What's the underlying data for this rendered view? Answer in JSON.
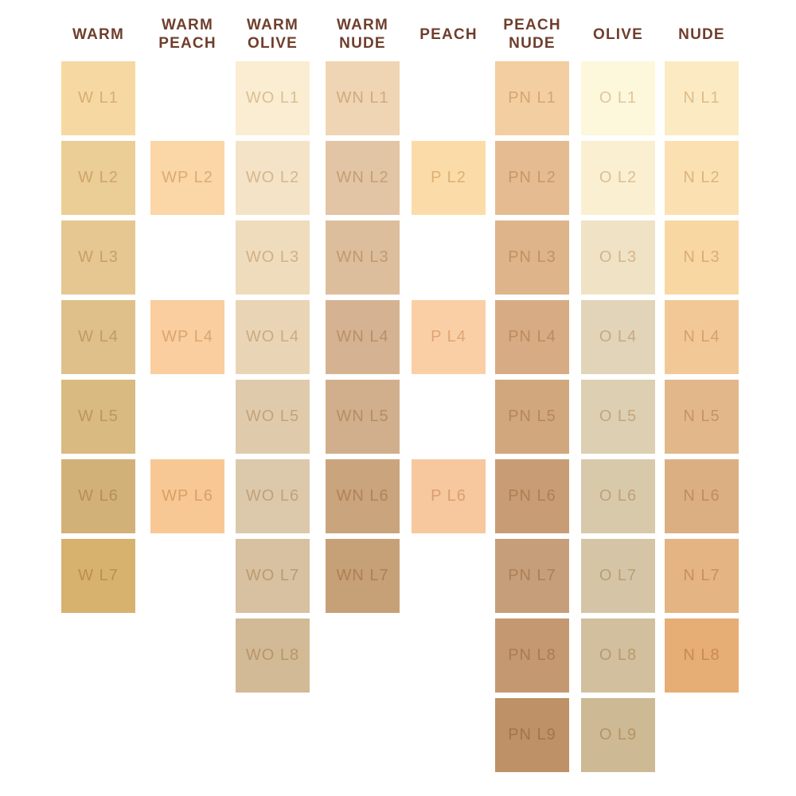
{
  "palette": {
    "background": "#FFFFFF",
    "header_text": "#6F3E2C"
  },
  "chart_data": {
    "type": "table",
    "description": "Foundation shade chart: 8 undertone families by lightness level L1-L9",
    "columns": [
      {
        "header": "WARM",
        "swatches": [
          {
            "label": "W L1",
            "row": 1,
            "color": "#F6D9A2"
          },
          {
            "label": "W L2",
            "row": 2,
            "color": "#EBCD96"
          },
          {
            "label": "W L3",
            "row": 3,
            "color": "#E6C791"
          },
          {
            "label": "W L4",
            "row": 4,
            "color": "#DFC08B"
          },
          {
            "label": "W L5",
            "row": 5,
            "color": "#D9BA81"
          },
          {
            "label": "W L6",
            "row": 6,
            "color": "#D2B179"
          },
          {
            "label": "W L7",
            "row": 7,
            "color": "#D7B26F"
          }
        ]
      },
      {
        "header": "WARM PEACH",
        "swatches": [
          {
            "label": "WP L2",
            "row": 2,
            "color": "#FBD6A6"
          },
          {
            "label": "WP L4",
            "row": 4,
            "color": "#FACE9E"
          },
          {
            "label": "WP L6",
            "row": 6,
            "color": "#F7C893"
          }
        ]
      },
      {
        "header": "WARM OLIVE",
        "swatches": [
          {
            "label": "WO L1",
            "row": 1,
            "color": "#FAEDD1"
          },
          {
            "label": "WO L2",
            "row": 2,
            "color": "#F4E3C6"
          },
          {
            "label": "WO L3",
            "row": 3,
            "color": "#EFDCBD"
          },
          {
            "label": "WO L4",
            "row": 4,
            "color": "#E9D5B6"
          },
          {
            "label": "WO L5",
            "row": 5,
            "color": "#DFCBAC"
          },
          {
            "label": "WO L6",
            "row": 6,
            "color": "#DCC9AB"
          },
          {
            "label": "WO L7",
            "row": 7,
            "color": "#D7C1A0"
          },
          {
            "label": "WO L8",
            "row": 8,
            "color": "#D2BA96"
          }
        ]
      },
      {
        "header": "WARM NUDE",
        "swatches": [
          {
            "label": "WN L1",
            "row": 1,
            "color": "#EFD5B3"
          },
          {
            "label": "WN L2",
            "row": 2,
            "color": "#E2C5A4"
          },
          {
            "label": "WN L3",
            "row": 3,
            "color": "#DCBE9D"
          },
          {
            "label": "WN L4",
            "row": 4,
            "color": "#D5B392"
          },
          {
            "label": "WN L5",
            "row": 5,
            "color": "#D1AF8C"
          },
          {
            "label": "WN L6",
            "row": 6,
            "color": "#C9A47C"
          },
          {
            "label": "WN L7",
            "row": 7,
            "color": "#C6A077"
          }
        ]
      },
      {
        "header": "PEACH",
        "swatches": [
          {
            "label": "P L2",
            "row": 2,
            "color": "#FBDCA8"
          },
          {
            "label": "P L4",
            "row": 4,
            "color": "#FBCFA6"
          },
          {
            "label": "P L6",
            "row": 6,
            "color": "#F7C79E"
          }
        ]
      },
      {
        "header": "PEACH NUDE",
        "swatches": [
          {
            "label": "PN L1",
            "row": 1,
            "color": "#F3CEA0"
          },
          {
            "label": "PN L2",
            "row": 2,
            "color": "#E5BC92"
          },
          {
            "label": "PN L3",
            "row": 3,
            "color": "#DEB48A"
          },
          {
            "label": "PN L4",
            "row": 4,
            "color": "#D7AC84"
          },
          {
            "label": "PN L5",
            "row": 5,
            "color": "#D1A77E"
          },
          {
            "label": "PN L6",
            "row": 6,
            "color": "#C89D75"
          },
          {
            "label": "PN L7",
            "row": 7,
            "color": "#C69F7A"
          },
          {
            "label": "PN L8",
            "row": 8,
            "color": "#C49972"
          },
          {
            "label": "PN L9",
            "row": 9,
            "color": "#BE9166"
          }
        ]
      },
      {
        "header": "OLIVE",
        "swatches": [
          {
            "label": "O L1",
            "row": 1,
            "color": "#FDF7DC"
          },
          {
            "label": "O L2",
            "row": 2,
            "color": "#FAEFD1"
          },
          {
            "label": "O L3",
            "row": 3,
            "color": "#F0E2C5"
          },
          {
            "label": "O L4",
            "row": 4,
            "color": "#E1D4B9"
          },
          {
            "label": "O L5",
            "row": 5,
            "color": "#DDCFB2"
          },
          {
            "label": "O L6",
            "row": 6,
            "color": "#D8C9AB"
          },
          {
            "label": "O L7",
            "row": 7,
            "color": "#D5C5A6"
          },
          {
            "label": "O L8",
            "row": 8,
            "color": "#D1BF9D"
          },
          {
            "label": "O L9",
            "row": 9,
            "color": "#CDB993"
          }
        ]
      },
      {
        "header": "NUDE",
        "swatches": [
          {
            "label": "N L1",
            "row": 1,
            "color": "#FCEBC2"
          },
          {
            "label": "N L2",
            "row": 2,
            "color": "#FBE1B1"
          },
          {
            "label": "N L3",
            "row": 3,
            "color": "#F9D7A3"
          },
          {
            "label": "N L4",
            "row": 4,
            "color": "#F2C996"
          },
          {
            "label": "N L5",
            "row": 5,
            "color": "#E2B88A"
          },
          {
            "label": "N L6",
            "row": 6,
            "color": "#DCAF82"
          },
          {
            "label": "N L7",
            "row": 7,
            "color": "#E4B483"
          },
          {
            "label": "N L8",
            "row": 8,
            "color": "#E6AD75"
          }
        ]
      }
    ]
  }
}
